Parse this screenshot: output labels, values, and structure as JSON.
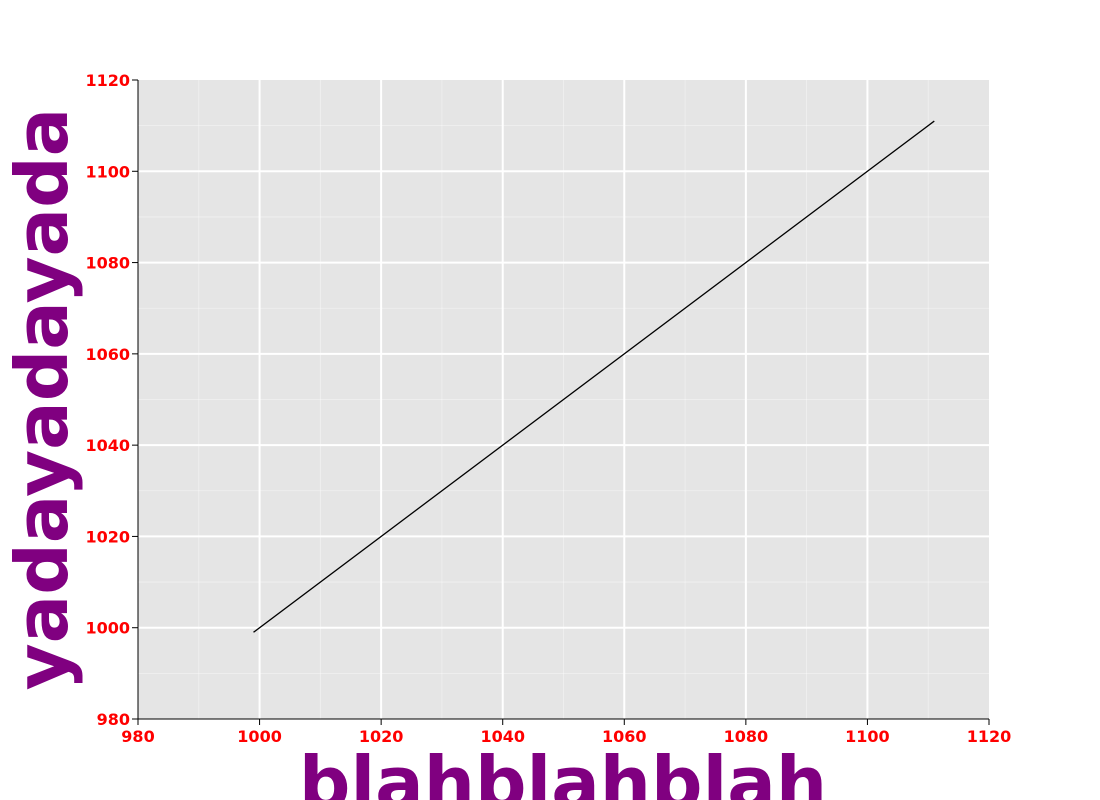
{
  "chart_data": {
    "type": "line",
    "title": "",
    "xlabel": "blahblahblah",
    "ylabel": "yadayadayada",
    "xlim": [
      980,
      1120
    ],
    "ylim": [
      980,
      1120
    ],
    "x_ticks": [
      980,
      1000,
      1020,
      1040,
      1060,
      1080,
      1100,
      1120
    ],
    "y_ticks": [
      980,
      1000,
      1020,
      1040,
      1060,
      1080,
      1100,
      1120
    ],
    "grid": true,
    "minor_grid": true,
    "series": [
      {
        "x": [
          999,
          1111
        ],
        "y": [
          999,
          1111
        ]
      }
    ]
  },
  "style": {
    "plot_background": "#e5e5e5",
    "grid_color": "#ffffff",
    "tick_label_color": "#ff0000",
    "axis_label_color": "#800080",
    "line_color": "#000000"
  }
}
